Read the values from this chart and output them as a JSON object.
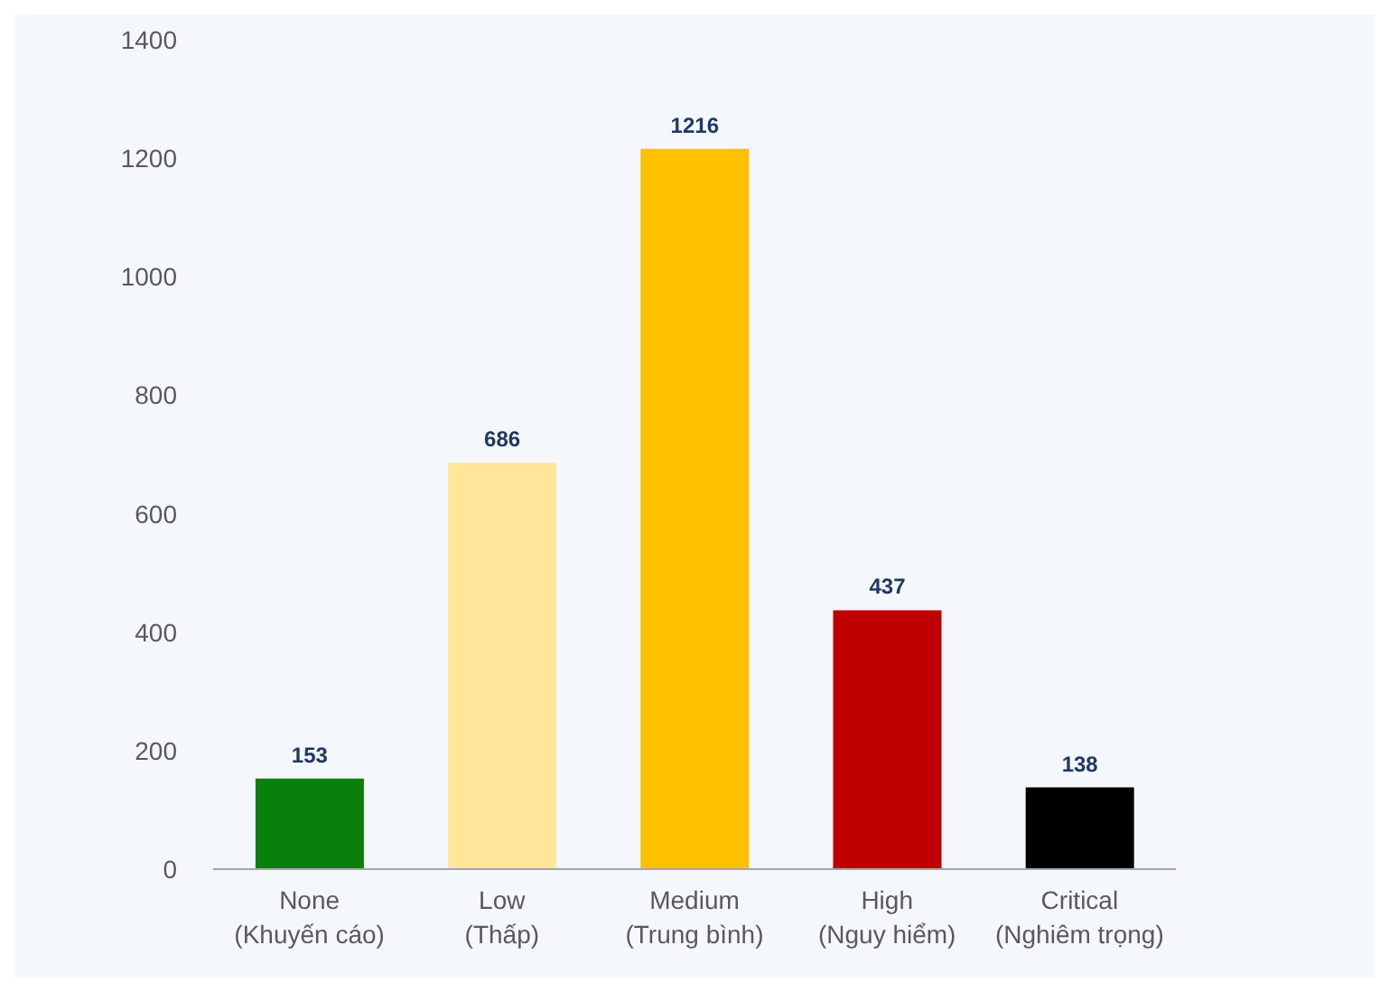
{
  "chart_data": {
    "type": "bar",
    "categories": [
      "None\n(Khuyến cáo)",
      "Low\n(Thấp)",
      "Medium\n(Trung bình)",
      "High\n(Nguy hiểm)",
      "Critical\n(Nghiêm trọng)"
    ],
    "values": [
      153,
      686,
      1216,
      437,
      138
    ],
    "colors": [
      "#0b7f0b",
      "#ffe699",
      "#ffc000",
      "#c00000",
      "#000000"
    ],
    "ylim": [
      0,
      1400
    ],
    "yticks": [
      0,
      200,
      400,
      600,
      800,
      1000,
      1200,
      1400
    ],
    "data_labels": true,
    "grid": false,
    "legend": false
  }
}
